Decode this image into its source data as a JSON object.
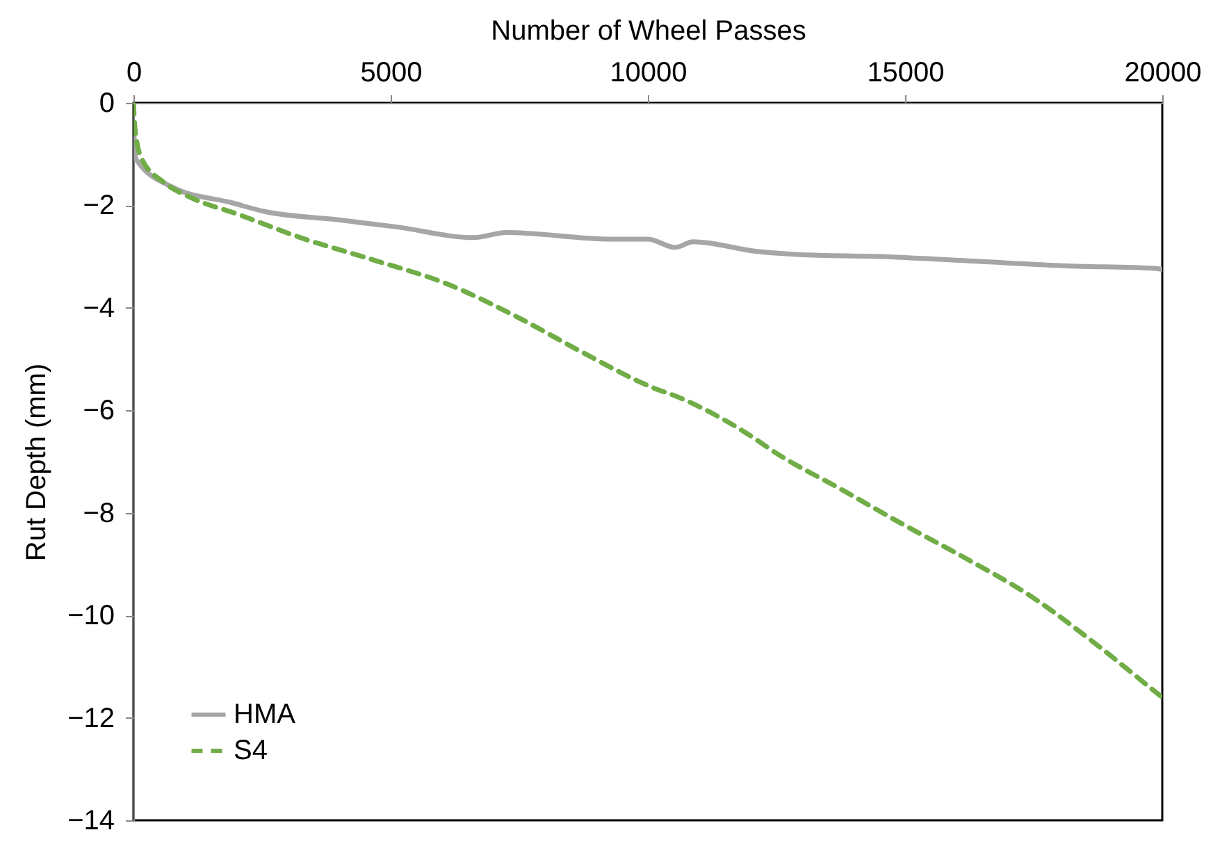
{
  "chart_data": {
    "type": "line",
    "xlabel": "Number of Wheel Passes",
    "ylabel": "Rut Depth (mm)",
    "xlim": [
      0,
      20000
    ],
    "xticks": [
      0,
      5000,
      10000,
      15000,
      20000
    ],
    "ylim": [
      -14,
      0
    ],
    "yticks": [
      0,
      -2,
      -4,
      -6,
      -8,
      -10,
      -12,
      -14
    ],
    "grid": false,
    "legend": "bottom left",
    "series": [
      {
        "name": "HMA",
        "color": "#a6a6a6",
        "line_style": "solid",
        "x": [
          0,
          50,
          770,
          1915,
          2550,
          3960,
          5110,
          6620,
          7240,
          9300,
          10000,
          10530,
          10880,
          12130,
          12930,
          14600,
          16380,
          18140,
          19850,
          20000
        ],
        "values": [
          -0.45,
          -1.1,
          -1.65,
          -1.95,
          -2.12,
          -2.28,
          -2.42,
          -2.63,
          -2.53,
          -2.66,
          -2.66,
          -2.82,
          -2.71,
          -2.9,
          -2.96,
          -3.0,
          -3.09,
          -3.18,
          -3.23,
          -3.25
        ]
      },
      {
        "name": "S4",
        "color": "#70ad47",
        "line_style": "dashed",
        "x": [
          0,
          30,
          160,
          590,
          1120,
          2020,
          3250,
          4680,
          6090,
          7500,
          8750,
          10080,
          10610,
          11940,
          12550,
          13720,
          14950,
          16200,
          17450,
          18670,
          19850,
          20000
        ],
        "values": [
          0,
          -0.5,
          -1.09,
          -1.55,
          -1.85,
          -2.17,
          -2.63,
          -3.07,
          -3.53,
          -4.2,
          -4.88,
          -5.55,
          -5.75,
          -6.46,
          -6.87,
          -7.52,
          -8.22,
          -8.9,
          -9.63,
          -10.53,
          -11.48,
          -11.6
        ]
      }
    ]
  }
}
